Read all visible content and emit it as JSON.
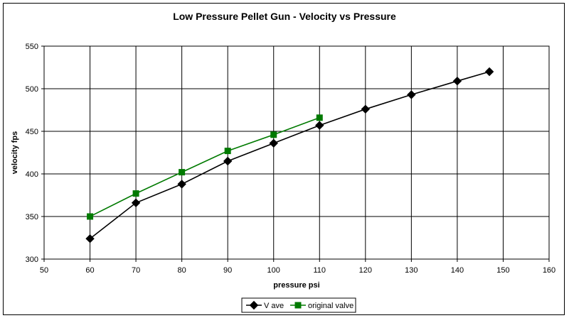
{
  "chart_data": {
    "type": "line",
    "title": "Low Pressure Pellet Gun - Velocity vs Pressure",
    "xlabel": "pressure psi",
    "ylabel": "velocity fps",
    "xlim": [
      50,
      160
    ],
    "ylim": [
      300,
      550
    ],
    "xticks": [
      50,
      60,
      70,
      80,
      90,
      100,
      110,
      120,
      130,
      140,
      150,
      160
    ],
    "yticks": [
      300,
      350,
      400,
      450,
      500,
      550
    ],
    "grid": true,
    "legend_position": "bottom",
    "series": [
      {
        "name": "V ave",
        "color": "#000000",
        "marker": "diamond",
        "x": [
          60,
          70,
          80,
          90,
          100,
          110,
          120,
          130,
          140,
          147
        ],
        "y": [
          324,
          366,
          388,
          415,
          436,
          457,
          476,
          493,
          509,
          520
        ]
      },
      {
        "name": "original valve",
        "color": "#007a00",
        "marker": "square",
        "x": [
          60,
          70,
          80,
          90,
          100,
          110
        ],
        "y": [
          350,
          377,
          402,
          427,
          446,
          466
        ]
      }
    ]
  }
}
